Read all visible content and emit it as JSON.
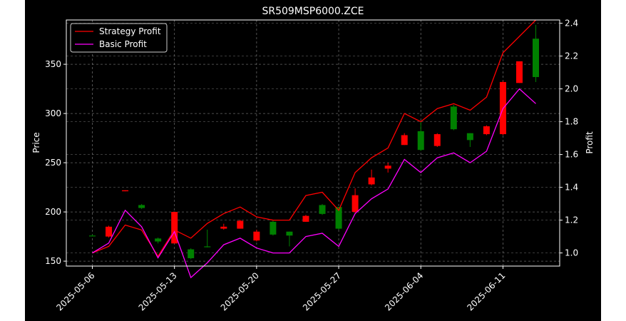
{
  "chart_data": {
    "type": "candlestick",
    "title": "SR509MSP6000.ZCE",
    "ylabel_left": "Price",
    "ylabel_right": "Profit",
    "xlabel": "",
    "grid": true,
    "legend_position": "top-left",
    "colors": {
      "background": "#000000",
      "up_candle": "#008000",
      "down_candle": "#ff0000",
      "strategy_profit": "#ff0000",
      "basic_profit": "#ff00ff",
      "text": "#ffffff",
      "grid": "#808080"
    },
    "dates": [
      "2025-05-06",
      "2025-05-07",
      "2025-05-08",
      "2025-05-09",
      "2025-05-12",
      "2025-05-13",
      "2025-05-14",
      "2025-05-15",
      "2025-05-16",
      "2025-05-19",
      "2025-05-20",
      "2025-05-21",
      "2025-05-22",
      "2025-05-23",
      "2025-05-26",
      "2025-05-27",
      "2025-05-28",
      "2025-05-29",
      "2025-05-30",
      "2025-06-03",
      "2025-06-04",
      "2025-06-05",
      "2025-06-06",
      "2025-06-09",
      "2025-06-10",
      "2025-06-11",
      "2025-06-12",
      "2025-06-13"
    ],
    "x_tick_labels": [
      "2025-05-06",
      "2025-05-13",
      "2025-05-20",
      "2025-05-27",
      "2025-06-04",
      "2025-06-11"
    ],
    "x_tick_indices": [
      0,
      5,
      10,
      15,
      20,
      25
    ],
    "price_ylim": [
      145,
      395
    ],
    "price_ticks": [
      150,
      200,
      250,
      300,
      350
    ],
    "profit_ylim": [
      0.92,
      2.42
    ],
    "profit_ticks": [
      1.0,
      1.2,
      1.4,
      1.6,
      1.8,
      2.0,
      2.2,
      2.4
    ],
    "candles": [
      {
        "open": 176,
        "high": 177,
        "low": 176,
        "close": 176
      },
      {
        "open": 185,
        "high": 186,
        "low": 174,
        "close": 175
      },
      {
        "open": 222,
        "high": 222,
        "low": 221,
        "close": 221
      },
      {
        "open": 204,
        "high": 208,
        "low": 203,
        "close": 207
      },
      {
        "open": 170,
        "high": 174,
        "low": 168,
        "close": 173
      },
      {
        "open": 200,
        "high": 200,
        "low": 168,
        "close": 168
      },
      {
        "open": 153,
        "high": 163,
        "low": 152,
        "close": 162
      },
      {
        "open": 165,
        "high": 182,
        "low": 164,
        "close": 165
      },
      {
        "open": 185,
        "high": 188,
        "low": 182,
        "close": 183
      },
      {
        "open": 191,
        "high": 192,
        "low": 183,
        "close": 183
      },
      {
        "open": 180,
        "high": 182,
        "low": 170,
        "close": 171
      },
      {
        "open": 177,
        "high": 192,
        "low": 176,
        "close": 190
      },
      {
        "open": 176,
        "high": 180,
        "low": 165,
        "close": 180
      },
      {
        "open": 196,
        "high": 197,
        "low": 190,
        "close": 190
      },
      {
        "open": 198,
        "high": 208,
        "low": 197,
        "close": 207
      },
      {
        "open": 183,
        "high": 205,
        "low": 182,
        "close": 205
      },
      {
        "open": 217,
        "high": 224,
        "low": 199,
        "close": 200
      },
      {
        "open": 235,
        "high": 243,
        "low": 227,
        "close": 228
      },
      {
        "open": 247,
        "high": 250,
        "low": 240,
        "close": 244
      },
      {
        "open": 278,
        "high": 280,
        "low": 268,
        "close": 268
      },
      {
        "open": 263,
        "high": 292,
        "low": 262,
        "close": 282
      },
      {
        "open": 279,
        "high": 280,
        "low": 266,
        "close": 267
      },
      {
        "open": 284,
        "high": 309,
        "low": 283,
        "close": 307
      },
      {
        "open": 273,
        "high": 280,
        "low": 266,
        "close": 280
      },
      {
        "open": 287,
        "high": 288,
        "low": 278,
        "close": 279
      },
      {
        "open": 332,
        "high": 333,
        "low": 278,
        "close": 279
      },
      {
        "open": 353,
        "high": 353,
        "low": 331,
        "close": 331
      },
      {
        "open": 337,
        "high": 390,
        "low": 332,
        "close": 376
      }
    ],
    "series": [
      {
        "name": "Strategy Profit",
        "values": [
          1.0,
          1.04,
          1.17,
          1.14,
          0.98,
          1.14,
          1.09,
          1.18,
          1.24,
          1.28,
          1.22,
          1.2,
          1.2,
          1.35,
          1.37,
          1.26,
          1.49,
          1.58,
          1.64,
          1.85,
          1.8,
          1.88,
          1.91,
          1.87,
          1.95,
          2.22,
          2.32,
          2.42
        ]
      },
      {
        "name": "Basic Profit",
        "values": [
          1.0,
          1.06,
          1.26,
          1.16,
          0.97,
          1.13,
          0.85,
          0.94,
          1.05,
          1.09,
          1.03,
          1.0,
          1.0,
          1.1,
          1.12,
          1.04,
          1.24,
          1.33,
          1.39,
          1.57,
          1.49,
          1.58,
          1.61,
          1.55,
          1.62,
          1.88,
          2.0,
          1.91
        ]
      }
    ]
  }
}
